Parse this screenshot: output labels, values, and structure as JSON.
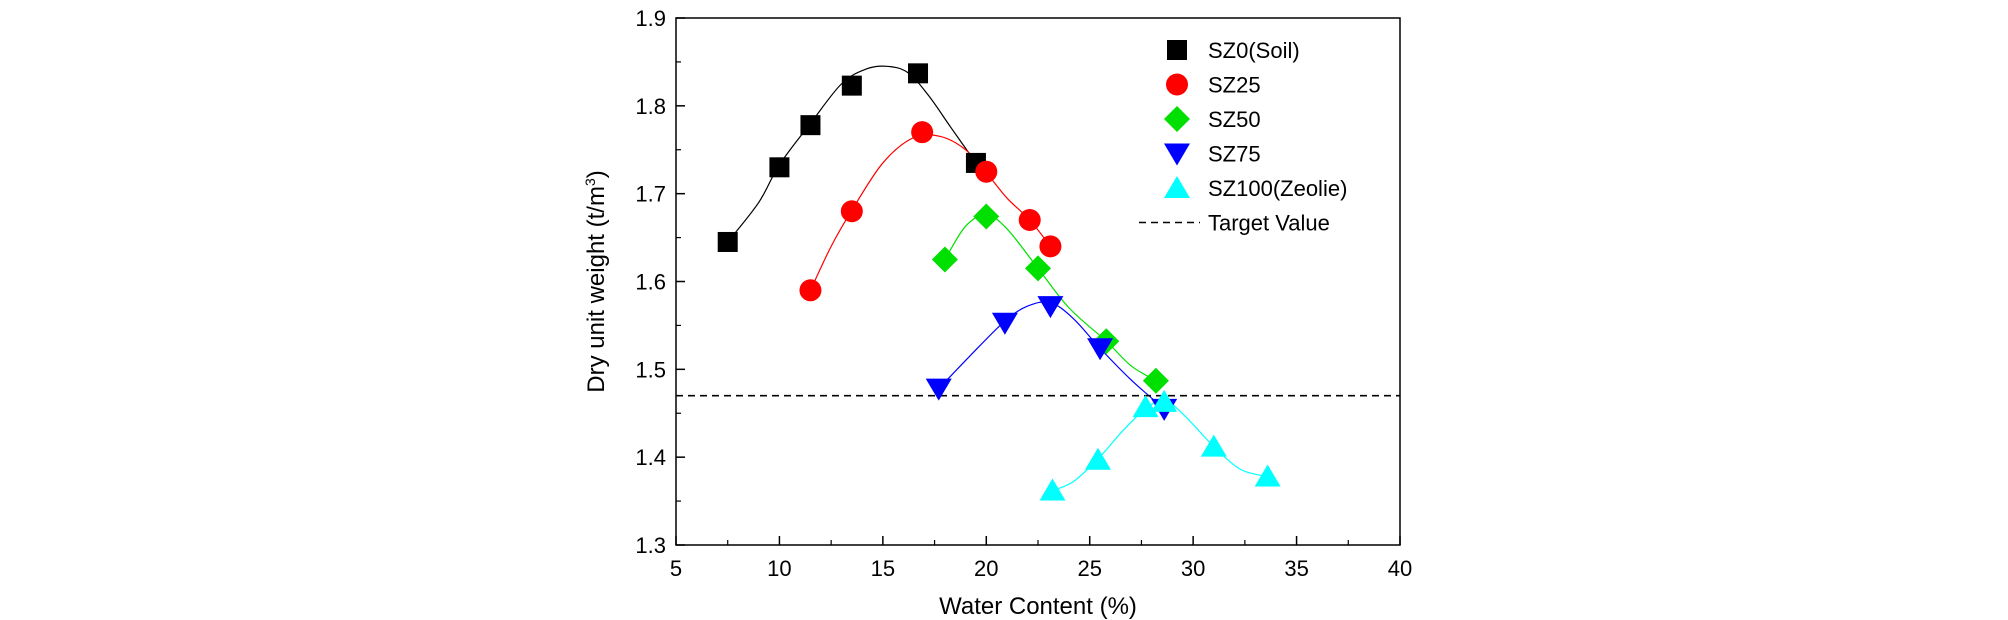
{
  "chart_data": {
    "type": "scatter",
    "title": "",
    "xlabel": "Water Content (%)",
    "ylabel_main": "Dry unit weight (t/m",
    "ylabel_sup": "3",
    "ylabel_close": ")",
    "ylabel": "Dry unit weight (t/m3)",
    "xlim": [
      5,
      40
    ],
    "ylim": [
      1.3,
      1.9
    ],
    "xticks": [
      "5",
      "10",
      "15",
      "20",
      "25",
      "30",
      "35",
      "40"
    ],
    "yticks": [
      "1.3",
      "1.4",
      "1.5",
      "1.6",
      "1.7",
      "1.8",
      "1.9"
    ],
    "grid": false,
    "legend_position": "top-right",
    "series": [
      {
        "name": "SZ0(Soil)",
        "marker": "square",
        "color": "#000000",
        "x": [
          7.5,
          10.0,
          11.5,
          13.5,
          16.7,
          19.5
        ],
        "y": [
          1.645,
          1.73,
          1.778,
          1.823,
          1.837,
          1.735
        ],
        "curve_x": [
          7.5,
          9.0,
          10.0,
          11.5,
          13.0,
          14.2,
          15.2,
          16.2,
          17.2,
          18.3,
          19.5
        ],
        "curve_y": [
          1.645,
          1.69,
          1.733,
          1.78,
          1.825,
          1.842,
          1.845,
          1.838,
          1.812,
          1.775,
          1.735
        ]
      },
      {
        "name": "SZ25",
        "color": "#ff0000",
        "marker": "circle",
        "x": [
          11.5,
          13.5,
          16.9,
          20.0,
          22.1,
          23.1
        ],
        "y": [
          1.59,
          1.68,
          1.77,
          1.725,
          1.67,
          1.64
        ],
        "curve_x": [
          11.5,
          12.5,
          13.5,
          15.0,
          16.5,
          17.8,
          19.0,
          20.0,
          21.0,
          22.1,
          23.1
        ],
        "curve_y": [
          1.59,
          1.64,
          1.681,
          1.735,
          1.764,
          1.765,
          1.75,
          1.724,
          1.695,
          1.67,
          1.64
        ]
      },
      {
        "name": "SZ50",
        "color": "#00e000",
        "marker": "diamond",
        "x": [
          18.0,
          20.0,
          22.5,
          25.8,
          28.2
        ],
        "y": [
          1.625,
          1.674,
          1.615,
          1.532,
          1.487
        ],
        "curve_x": [
          18.0,
          19.0,
          20.0,
          21.0,
          22.5,
          24.0,
          25.8,
          27.0,
          28.2
        ],
        "curve_y": [
          1.625,
          1.663,
          1.676,
          1.66,
          1.615,
          1.57,
          1.532,
          1.504,
          1.487
        ]
      },
      {
        "name": "SZ75",
        "color": "#0000ff",
        "marker": "triangle-down",
        "x": [
          17.7,
          20.9,
          23.1,
          25.5,
          28.6
        ],
        "y": [
          1.478,
          1.553,
          1.572,
          1.524,
          1.455
        ],
        "curve_x": [
          17.7,
          19.2,
          20.9,
          22.0,
          23.1,
          24.2,
          25.5,
          27.0,
          28.6
        ],
        "curve_y": [
          1.478,
          1.515,
          1.555,
          1.572,
          1.576,
          1.558,
          1.524,
          1.488,
          1.455
        ]
      },
      {
        "name": "SZ100(Zeolie)",
        "color": "#00ffff",
        "marker": "triangle-up",
        "x": [
          23.2,
          25.4,
          27.7,
          28.6,
          31.0,
          33.6
        ],
        "y": [
          1.362,
          1.397,
          1.457,
          1.463,
          1.412,
          1.378
        ],
        "curve_x": [
          23.2,
          24.2,
          25.4,
          26.6,
          27.7,
          28.6,
          29.6,
          31.0,
          32.3,
          33.6
        ],
        "curve_y": [
          1.362,
          1.372,
          1.398,
          1.43,
          1.455,
          1.465,
          1.447,
          1.412,
          1.386,
          1.378
        ]
      }
    ],
    "reference_lines": [
      {
        "name": "Target Value",
        "y": 1.47,
        "style": "dashed",
        "color": "#000000"
      }
    ]
  }
}
